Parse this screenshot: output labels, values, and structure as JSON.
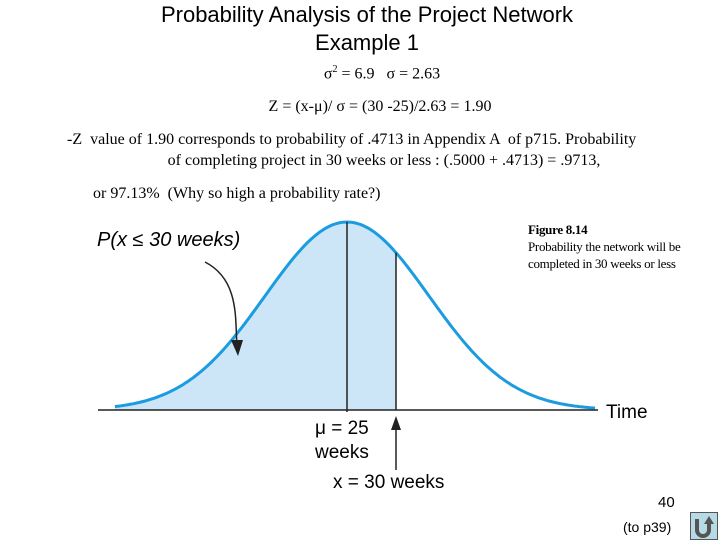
{
  "slide": {
    "title_line1": "Probability Analysis of the Project Network",
    "title_line2": "Example 1",
    "variance_line": "σ2 = 6.9   σ = 2.63",
    "z_formula": "Z = (x-μ)/ σ = (30 -25)/2.63 = 1.90",
    "paragraph_line1": "-Z  value of 1.90 corresponds to probability of .4713 in Appendix A  of p715. Probability",
    "paragraph_line2": "of completing project in 30 weeks or less : (.5000 + .4713) = .9713,",
    "paragraph_line3": "or 97.13%  (Why so high a probability rate?)",
    "page_number": "40",
    "back_link": "(to p39)",
    "back_icon": "u-turn-arrow-icon"
  },
  "figure": {
    "caption_title": "Figure 8.14",
    "caption_line1": "Probability the network will be",
    "caption_line2": "completed in 30 weeks or less",
    "prob_label": "P(x ≤ 30 weeks)",
    "axis_label": "Time",
    "mean_label_line1": "μ = 25",
    "mean_label_line2": "weeks",
    "x_label": "x = 30 weeks",
    "mean": 25,
    "x_value": 30,
    "curve_color": "#1b9be0",
    "fill_color": "#cde6f7"
  }
}
